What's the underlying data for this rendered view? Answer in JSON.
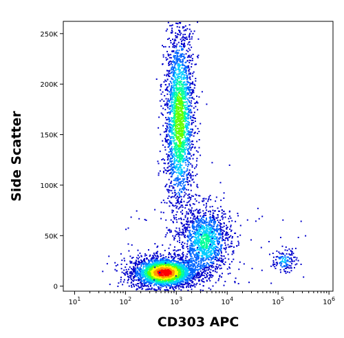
{
  "chart_data": {
    "type": "scatter",
    "plot_style": "density-dot-plot",
    "xlabel": "CD303 APC",
    "ylabel": "Side Scatter",
    "x_scale": "log",
    "xlim": [
      6,
      1200000
    ],
    "ylim": [
      -5000,
      262144
    ],
    "x_ticks": [
      {
        "value": 10,
        "base": "10",
        "exp": "1"
      },
      {
        "value": 100,
        "base": "10",
        "exp": "2"
      },
      {
        "value": 1000,
        "base": "10",
        "exp": "3"
      },
      {
        "value": 10000,
        "base": "10",
        "exp": "4"
      },
      {
        "value": 100000,
        "base": "10",
        "exp": "5"
      },
      {
        "value": 1000000,
        "base": "10",
        "exp": "6"
      }
    ],
    "y_ticks": [
      {
        "value": 0,
        "label": "0"
      },
      {
        "value": 50000,
        "label": "50K"
      },
      {
        "value": 100000,
        "label": "100K"
      },
      {
        "value": 150000,
        "label": "150K"
      },
      {
        "value": 200000,
        "label": "200K"
      },
      {
        "value": 250000,
        "label": "250K"
      }
    ],
    "density_colors": [
      "#0000cc",
      "#0066ff",
      "#00ccff",
      "#00ff99",
      "#66ff00",
      "#ffff00",
      "#ff9900",
      "#ff0000"
    ],
    "populations": [
      {
        "log10_x_center": 2.75,
        "y_center": 14000,
        "log10_x_sd": 0.28,
        "y_sd": 7000,
        "density_peak": 1.0
      },
      {
        "log10_x_center": 3.05,
        "y_center": 165000,
        "log10_x_sd": 0.13,
        "y_sd": 42000,
        "density_peak": 0.62
      },
      {
        "log10_x_center": 3.55,
        "y_center": 45000,
        "log10_x_sd": 0.22,
        "y_sd": 16000,
        "density_peak": 0.42
      },
      {
        "log10_x_center": 5.1,
        "y_center": 26000,
        "log10_x_sd": 0.1,
        "y_sd": 5000,
        "density_peak": 0.3
      }
    ]
  }
}
